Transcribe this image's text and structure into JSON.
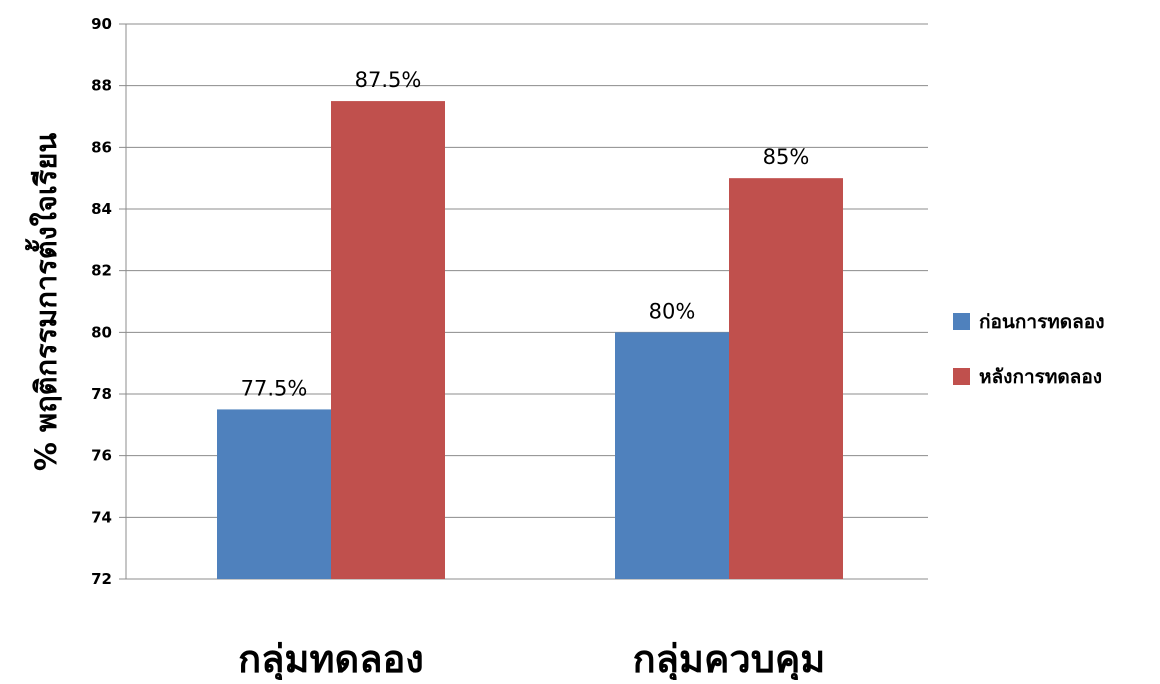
{
  "chart_data": {
    "type": "bar",
    "title": "",
    "xlabel": "",
    "ylabel": "% พฤติกรรมการตั้งใจเรียน",
    "ylim": [
      72,
      90
    ],
    "yticks": [
      72,
      74,
      76,
      78,
      80,
      82,
      84,
      86,
      88,
      90
    ],
    "grid": true,
    "legend_position": "right",
    "categories": [
      "กลุ่มทดลอง",
      "กลุ่มควบคุม"
    ],
    "series": [
      {
        "name": "ก่อนการทดลอง",
        "color": "#4f81bd",
        "values": [
          77.5,
          80
        ],
        "labels": [
          "77.5%",
          "80%"
        ]
      },
      {
        "name": "หลังการทดลอง",
        "color": "#c0504d",
        "values": [
          87.5,
          85
        ],
        "labels": [
          "87.5%",
          "85%"
        ]
      }
    ]
  }
}
